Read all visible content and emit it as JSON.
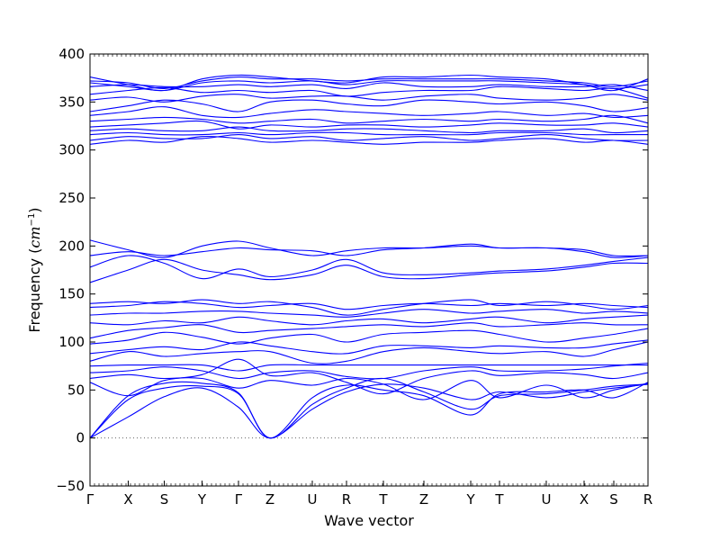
{
  "chart_data": {
    "type": "line",
    "xlabel": "Wave vector",
    "ylabel": {
      "prefix": "Frequency (",
      "unit_base": "cm",
      "unit_exp": "−1",
      "suffix": ")"
    },
    "ylim": [
      -50,
      400
    ],
    "yticks": [
      -50,
      0,
      50,
      100,
      150,
      200,
      250,
      300,
      350,
      400
    ],
    "x_points": [
      "Γ",
      "X",
      "S",
      "Y",
      "Γ",
      "Z",
      "U",
      "R",
      "T",
      "Z",
      "Y",
      "T",
      "U",
      "X",
      "S",
      "R"
    ],
    "x_point_positions": [
      0,
      0.0685,
      0.1331,
      0.2008,
      0.2661,
      0.3226,
      0.3984,
      0.4597,
      0.5258,
      0.5984,
      0.6823,
      0.7339,
      0.8177,
      0.8855,
      0.9387,
      1.0
    ],
    "zero_line": true,
    "line_color": "#0000ff",
    "notes": "Phonon dispersion: many blue bands. Acoustic branches start at 0 at Γ points; an optical cluster spans ~40-145, a second cluster ~160-205, and a dense cluster ~305-380.",
    "series": [
      {
        "values": [
          0,
          22,
          43,
          52,
          32,
          0,
          30,
          48,
          56,
          52,
          40,
          48,
          42,
          48,
          52,
          56
        ]
      },
      {
        "values": [
          0,
          40,
          52,
          54,
          46,
          0,
          35,
          52,
          62,
          48,
          30,
          44,
          46,
          50,
          54,
          56
        ]
      },
      {
        "values": [
          0,
          44,
          57,
          57,
          47,
          0,
          42,
          55,
          50,
          44,
          24,
          46,
          48,
          50,
          42,
          58
        ]
      },
      {
        "values": [
          58,
          44,
          60,
          62,
          52,
          60,
          55,
          62,
          56,
          40,
          60,
          42,
          55,
          42,
          50,
          57
        ]
      },
      {
        "values": [
          62,
          66,
          62,
          66,
          82,
          65,
          68,
          58,
          46,
          62,
          70,
          65,
          68,
          66,
          62,
          68
        ]
      },
      {
        "values": [
          68,
          70,
          74,
          70,
          62,
          68,
          70,
          64,
          62,
          70,
          74,
          70,
          70,
          72,
          75,
          78
        ]
      },
      {
        "values": [
          75,
          76,
          76,
          76,
          70,
          76,
          76,
          76,
          76,
          76,
          76,
          76,
          76,
          76,
          76,
          76
        ]
      },
      {
        "values": [
          80,
          90,
          85,
          88,
          90,
          90,
          78,
          80,
          90,
          94,
          90,
          88,
          90,
          85,
          92,
          100
        ]
      },
      {
        "values": [
          88,
          92,
          95,
          92,
          100,
          96,
          90,
          88,
          96,
          96,
          94,
          96,
          94,
          94,
          98,
          102
        ]
      },
      {
        "values": [
          98,
          102,
          110,
          105,
          98,
          104,
          108,
          100,
          108,
          110,
          112,
          108,
          100,
          104,
          108,
          114
        ]
      },
      {
        "values": [
          104,
          112,
          115,
          118,
          110,
          112,
          114,
          116,
          118,
          116,
          120,
          116,
          118,
          120,
          118,
          118
        ]
      },
      {
        "values": [
          120,
          118,
          122,
          120,
          126,
          122,
          118,
          122,
          124,
          120,
          124,
          126,
          120,
          124,
          126,
          128
        ]
      },
      {
        "values": [
          128,
          130,
          130,
          132,
          132,
          130,
          128,
          126,
          130,
          134,
          130,
          132,
          134,
          130,
          132,
          130
        ]
      },
      {
        "values": [
          136,
          138,
          142,
          140,
          136,
          138,
          140,
          134,
          138,
          140,
          138,
          140,
          138,
          140,
          138,
          136
        ]
      },
      {
        "values": [
          140,
          142,
          140,
          144,
          140,
          142,
          136,
          128,
          134,
          140,
          144,
          138,
          142,
          138,
          134,
          138
        ]
      },
      {
        "values": [
          162,
          175,
          186,
          175,
          170,
          165,
          170,
          180,
          168,
          166,
          170,
          172,
          174,
          178,
          182,
          182
        ]
      },
      {
        "values": [
          178,
          190,
          182,
          166,
          176,
          168,
          175,
          186,
          172,
          170,
          172,
          174,
          176,
          180,
          184,
          188
        ]
      },
      {
        "values": [
          190,
          194,
          190,
          194,
          198,
          196,
          195,
          190,
          196,
          198,
          202,
          198,
          198,
          194,
          188,
          190
        ]
      },
      {
        "values": [
          206,
          196,
          188,
          200,
          205,
          198,
          190,
          195,
          198,
          198,
          200,
          198,
          198,
          196,
          190,
          190
        ]
      },
      {
        "values": [
          306,
          310,
          308,
          314,
          312,
          308,
          310,
          308,
          306,
          308,
          308,
          310,
          312,
          308,
          310,
          306
        ]
      },
      {
        "values": [
          310,
          314,
          312,
          312,
          316,
          312,
          314,
          310,
          312,
          314,
          310,
          312,
          316,
          312,
          310,
          310
        ]
      },
      {
        "values": [
          316,
          318,
          316,
          316,
          318,
          316,
          318,
          318,
          316,
          316,
          316,
          318,
          318,
          316,
          316,
          316
        ]
      },
      {
        "values": [
          320,
          322,
          320,
          320,
          324,
          320,
          320,
          322,
          322,
          320,
          318,
          320,
          320,
          322,
          318,
          320
        ]
      },
      {
        "values": [
          324,
          326,
          328,
          330,
          322,
          326,
          324,
          326,
          326,
          324,
          326,
          328,
          326,
          326,
          328,
          324
        ]
      },
      {
        "values": [
          330,
          332,
          334,
          332,
          328,
          330,
          332,
          328,
          330,
          332,
          330,
          332,
          330,
          332,
          336,
          328
        ]
      },
      {
        "values": [
          336,
          340,
          345,
          336,
          334,
          338,
          342,
          340,
          338,
          336,
          338,
          340,
          336,
          338,
          334,
          336
        ]
      },
      {
        "values": [
          340,
          346,
          352,
          348,
          340,
          350,
          352,
          348,
          346,
          352,
          350,
          348,
          350,
          346,
          340,
          344
        ]
      },
      {
        "values": [
          352,
          355,
          350,
          356,
          358,
          354,
          356,
          356,
          352,
          356,
          358,
          354,
          352,
          354,
          358,
          352
        ]
      },
      {
        "values": [
          358,
          362,
          365,
          360,
          362,
          360,
          362,
          356,
          360,
          362,
          362,
          366,
          364,
          362,
          364,
          354
        ]
      },
      {
        "values": [
          366,
          368,
          366,
          366,
          368,
          366,
          368,
          364,
          370,
          366,
          366,
          368,
          366,
          366,
          368,
          362
        ]
      },
      {
        "values": [
          370,
          366,
          362,
          370,
          372,
          370,
          372,
          368,
          372,
          372,
          372,
          372,
          370,
          368,
          364,
          368
        ]
      },
      {
        "values": [
          372,
          370,
          364,
          372,
          376,
          374,
          374,
          372,
          374,
          374,
          374,
          374,
          372,
          370,
          366,
          372
        ]
      },
      {
        "values": [
          376,
          368,
          362,
          374,
          378,
          376,
          372,
          370,
          376,
          376,
          378,
          376,
          374,
          368,
          362,
          374
        ]
      }
    ]
  }
}
